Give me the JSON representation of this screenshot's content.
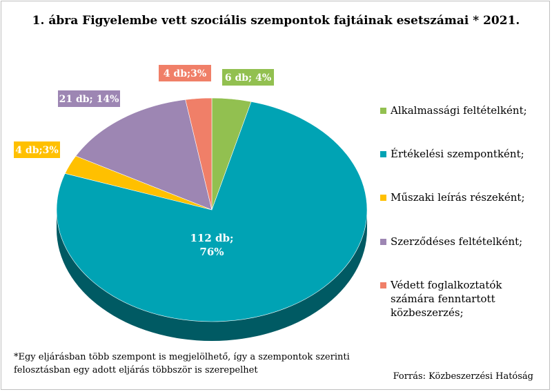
{
  "chart_data": {
    "type": "pie",
    "title": "1. ábra Figyelembe vett szociális szempontok fajtáinak esetszámai * 2021.",
    "series": [
      {
        "name": "Alkalmassági feltételként;",
        "value": 6,
        "label": "6 db; 4%",
        "color": "#92C050"
      },
      {
        "name": "Értékelési szempontként;",
        "value": 112,
        "label": "112 db;\n76%",
        "color": "#00A3B4"
      },
      {
        "name": "Műszaki leírás részeként;",
        "value": 4,
        "label": "4 db;3%",
        "color": "#FFC000"
      },
      {
        "name": "Szerződéses feltételként;",
        "value": 21,
        "label": "21 db; 14%",
        "color": "#9D86B3"
      },
      {
        "name": "Védett foglalkoztatók számára fenntartott közbeszerzés;",
        "value": 4,
        "label": "4 db;3%",
        "color": "#F07F68"
      }
    ],
    "legend_position": "right"
  },
  "footnote": "*Egy eljárásban több szempont is megjelölhető, így a szempontok szerinti felosztásban egy adott eljárás többször is szerepelhet",
  "source": "Forrás: Közbeszerzési Hatóság"
}
